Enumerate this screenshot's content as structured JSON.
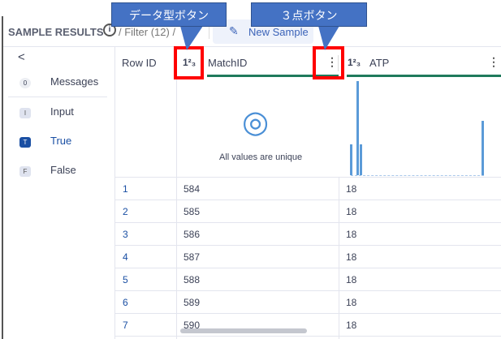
{
  "header": {
    "title": "SAMPLE RESULTS",
    "info_icon": "info-icon",
    "filter": "/ Filter (12) /",
    "new_sample": "New Sample"
  },
  "sidebar": {
    "collapse": "<",
    "items": [
      {
        "badge": "0",
        "label": "Messages"
      },
      {
        "badge": "I",
        "label": "Input"
      },
      {
        "badge": "T",
        "label": "True"
      },
      {
        "badge": "F",
        "label": "False"
      }
    ]
  },
  "table": {
    "columns": [
      "Row ID",
      "MatchID",
      "ATP"
    ],
    "type_icon": "1²₃",
    "unique_text": "All values are unique",
    "rows": [
      [
        "1",
        "584",
        "18"
      ],
      [
        "2",
        "585",
        "18"
      ],
      [
        "3",
        "586",
        "18"
      ],
      [
        "4",
        "587",
        "18"
      ],
      [
        "5",
        "588",
        "18"
      ],
      [
        "6",
        "589",
        "18"
      ],
      [
        "7",
        "590",
        "18"
      ]
    ]
  },
  "callouts": {
    "type_button": "データ型ボタン",
    "menu_button": "３点ボタン"
  },
  "colors": {
    "accent": "#1f7a5c",
    "active": "#1a4fa3",
    "callout": "#4472c4",
    "highlight": "#ff0000"
  }
}
